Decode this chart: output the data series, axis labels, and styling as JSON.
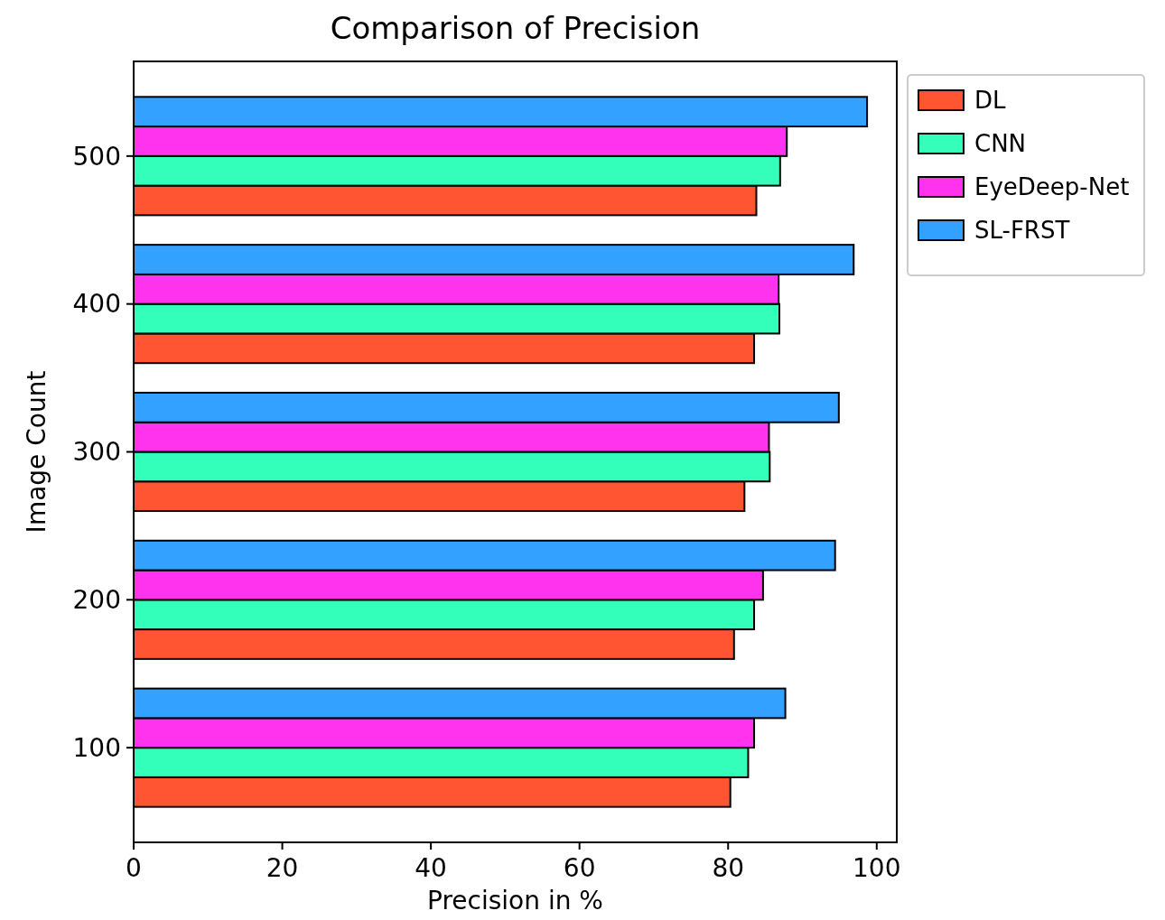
{
  "chart_data": {
    "type": "bar",
    "orientation": "horizontal",
    "title": "Comparison of Precision",
    "xlabel": "Precision in %",
    "ylabel": "Image Count",
    "categories": [
      "500",
      "400",
      "300",
      "200",
      "100"
    ],
    "series": [
      {
        "name": "DL",
        "color": "#ff5533",
        "values": [
          83.8,
          83.5,
          82.2,
          80.8,
          80.3
        ]
      },
      {
        "name": "CNN",
        "color": "#33ffbb",
        "values": [
          87.0,
          86.9,
          85.6,
          83.5,
          82.7
        ]
      },
      {
        "name": "EyeDeep-Net",
        "color": "#ff33ee",
        "values": [
          87.9,
          86.8,
          85.5,
          84.7,
          83.5
        ]
      },
      {
        "name": "SL-FRST",
        "color": "#33a1ff",
        "values": [
          98.7,
          96.9,
          94.9,
          94.4,
          87.7
        ]
      }
    ],
    "xlim": [
      0,
      102.7
    ],
    "xticks": [
      0,
      20,
      40,
      60,
      80,
      100
    ],
    "grid": false,
    "legend": "top right"
  }
}
